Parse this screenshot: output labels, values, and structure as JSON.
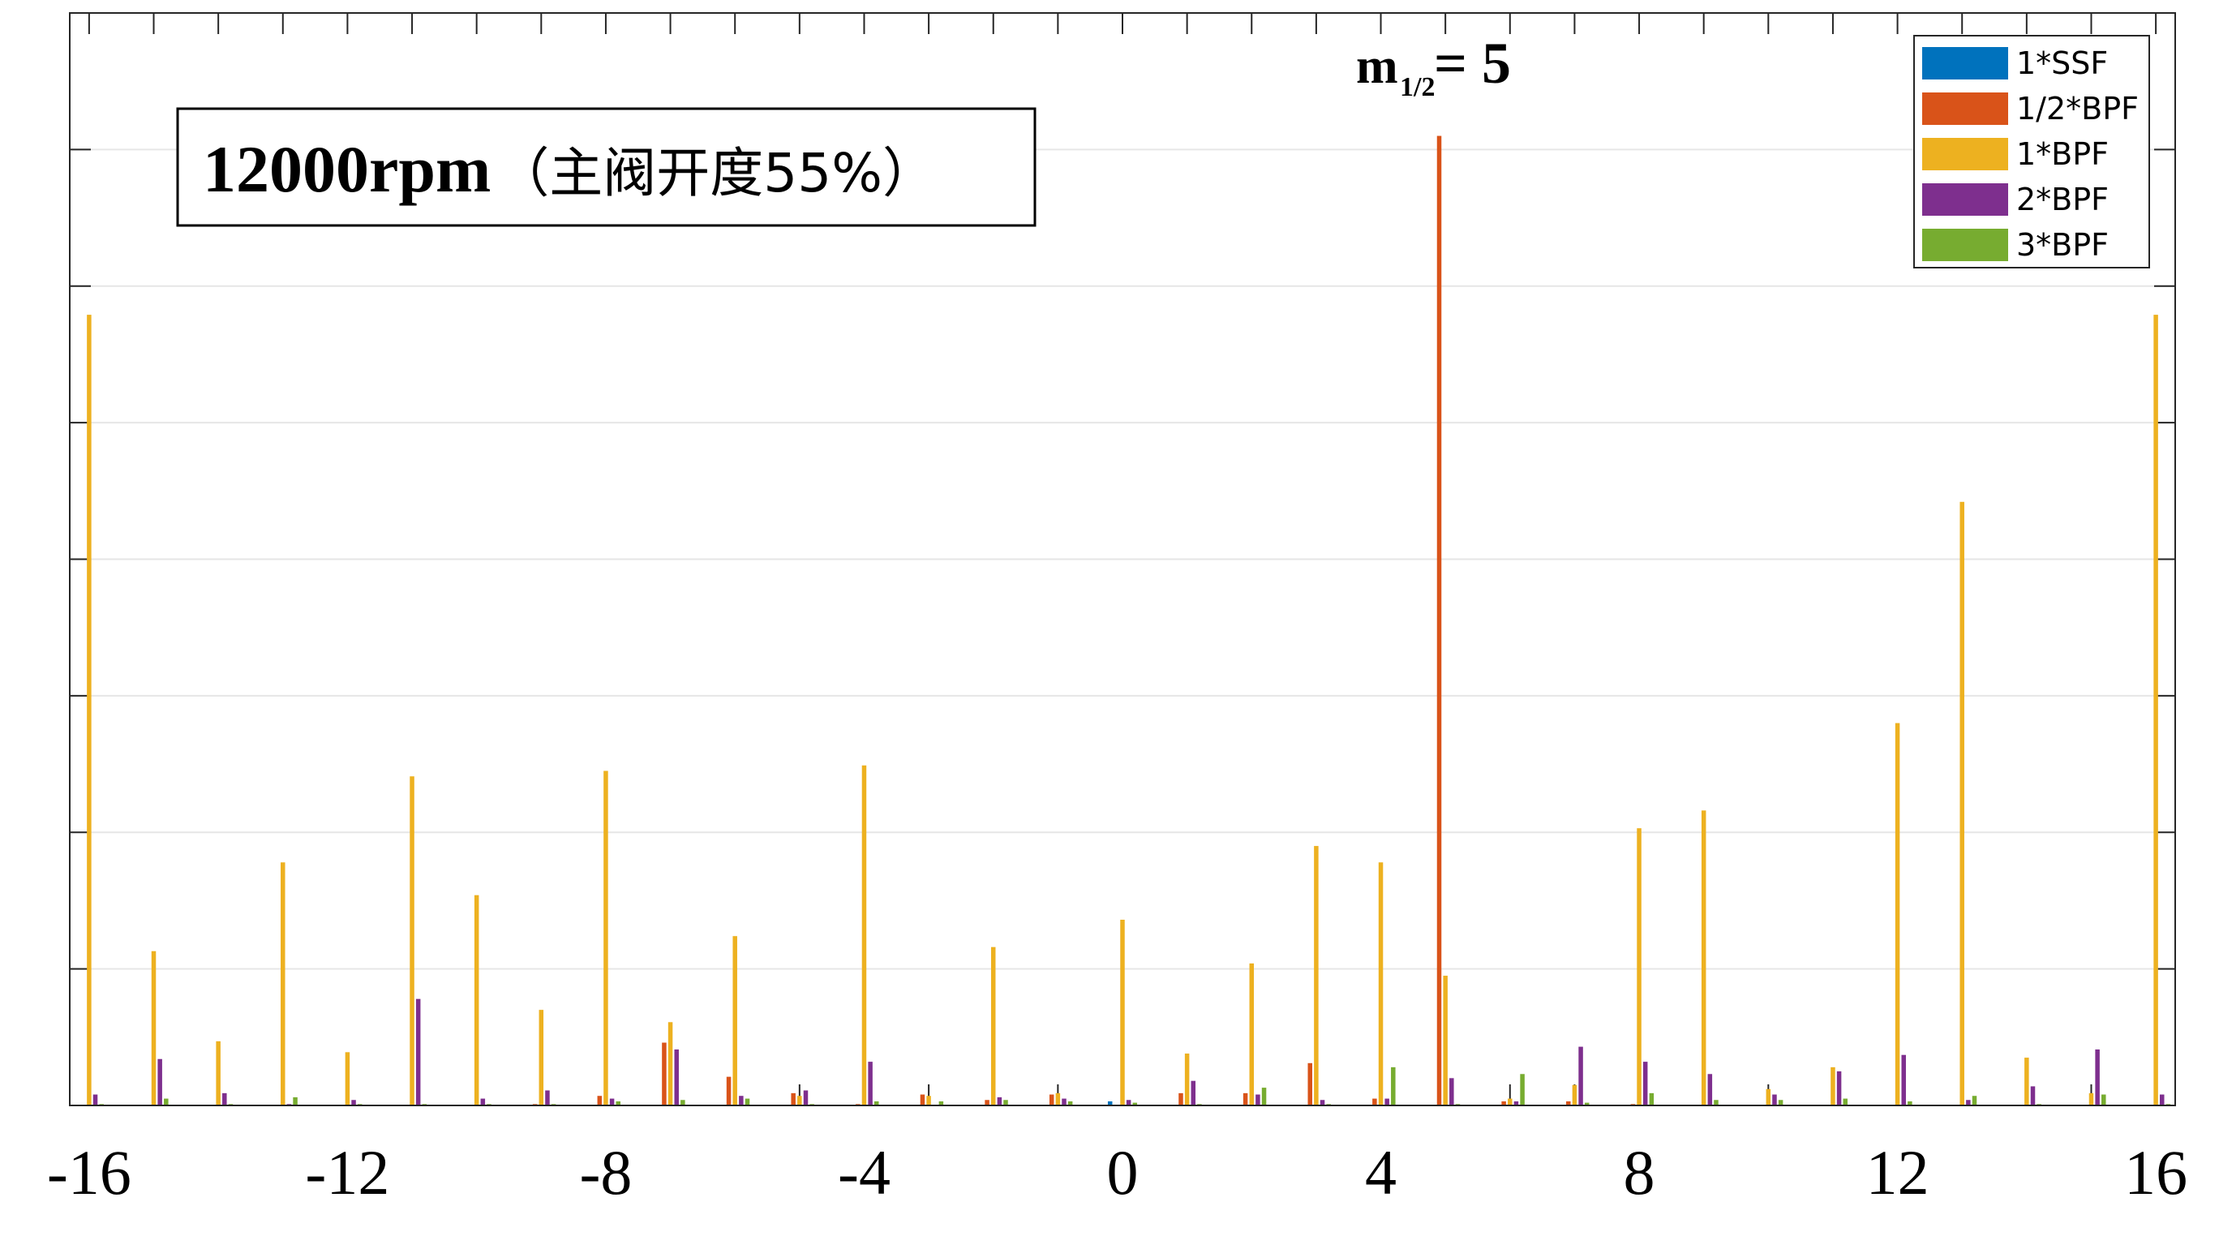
{
  "chart_data": {
    "type": "bar",
    "title": "",
    "xlabel": "",
    "ylabel": "",
    "x": [
      -16,
      -15,
      -14,
      -13,
      -12,
      -11,
      -10,
      -9,
      -8,
      -7,
      -6,
      -5,
      -4,
      -3,
      -2,
      -1,
      0,
      1,
      2,
      3,
      4,
      5,
      6,
      7,
      8,
      9,
      10,
      11,
      12,
      13,
      14,
      15,
      16
    ],
    "xticks": [
      -16,
      -12,
      -8,
      -4,
      0,
      4,
      8,
      12,
      16
    ],
    "xlim": [
      -16.3,
      16.3
    ],
    "ylim": [
      0,
      8
    ],
    "yticks": [
      0,
      1,
      2,
      3,
      4,
      5,
      6,
      7,
      8
    ],
    "grid": true,
    "legend_position": "top-right",
    "series": [
      {
        "name": "1*SSF",
        "color": "#0072BD",
        "values": [
          0,
          0,
          0,
          0,
          0,
          0,
          0,
          0,
          0,
          0,
          0,
          0,
          0,
          0,
          0,
          0,
          0.03,
          0,
          0,
          0,
          0,
          0,
          0,
          0,
          0,
          0,
          0,
          0,
          0,
          0,
          0,
          0,
          0
        ]
      },
      {
        "name": "1/2*BPF",
        "color": "#D95319",
        "values": [
          0,
          0,
          0,
          0,
          0,
          0,
          0,
          0.01,
          0.07,
          0.46,
          0.21,
          0.09,
          0.01,
          0.08,
          0.04,
          0.08,
          0,
          0.09,
          0.09,
          0.31,
          0.05,
          7.1,
          0.03,
          0.03,
          0.01,
          0,
          0,
          0,
          0,
          0,
          0,
          0,
          0
        ]
      },
      {
        "name": "1*BPF",
        "color": "#EDB120",
        "values": [
          5.79,
          1.13,
          0.47,
          1.78,
          0.39,
          2.41,
          1.54,
          0.7,
          2.45,
          0.61,
          1.24,
          0.07,
          2.49,
          0.07,
          1.16,
          0.09,
          1.36,
          0.38,
          1.04,
          1.9,
          1.78,
          0.95,
          0.05,
          0.15,
          2.03,
          2.16,
          0.12,
          0.28,
          2.8,
          4.42,
          0.35,
          0.09,
          5.79
        ]
      },
      {
        "name": "2*BPF",
        "color": "#7E2F8E",
        "values": [
          0.08,
          0.34,
          0.09,
          0.01,
          0.04,
          0.78,
          0.05,
          0.11,
          0.05,
          0.41,
          0.07,
          0.11,
          0.32,
          0,
          0.06,
          0.05,
          0.04,
          0.18,
          0.08,
          0.04,
          0.05,
          0.2,
          0.03,
          0.43,
          0.32,
          0.23,
          0.08,
          0.25,
          0.37,
          0.04,
          0.14,
          0.41,
          0.08
        ]
      },
      {
        "name": "3*BPF",
        "color": "#77AC30",
        "values": [
          0.01,
          0.05,
          0.01,
          0.06,
          0.01,
          0.01,
          0.01,
          0.01,
          0.03,
          0.04,
          0.05,
          0.01,
          0.03,
          0.03,
          0.04,
          0.03,
          0.02,
          0.01,
          0.13,
          0.01,
          0.28,
          0.01,
          0.23,
          0.02,
          0.09,
          0.04,
          0.04,
          0.05,
          0.03,
          0.07,
          0.01,
          0.08,
          0.01
        ]
      }
    ],
    "annotation": {
      "text_main": "m",
      "text_sub": "1/2",
      "text_eq": "= 5"
    },
    "title_box": {
      "text_latin": "12000rpm",
      "text_cjk": "（主阀开度55%）"
    }
  }
}
